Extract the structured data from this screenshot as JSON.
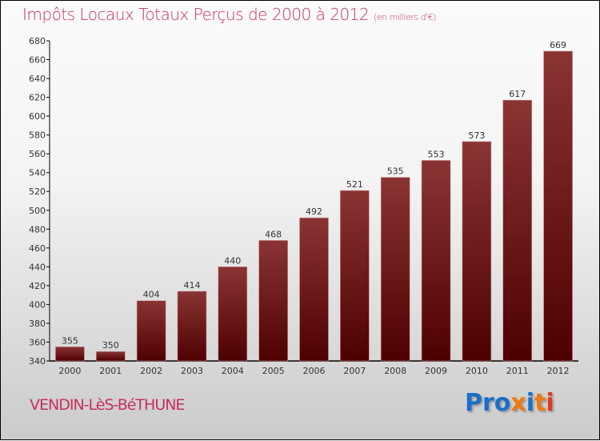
{
  "chart_data": {
    "type": "bar",
    "title": "Impôts Locaux Totaux Perçus de 2000 à 2012",
    "subtitle": "(en milliers d'€)",
    "categories": [
      "2000",
      "2001",
      "2002",
      "2003",
      "2004",
      "2005",
      "2006",
      "2007",
      "2008",
      "2009",
      "2010",
      "2011",
      "2012"
    ],
    "values": [
      355,
      350,
      404,
      414,
      440,
      468,
      492,
      521,
      535,
      553,
      573,
      617,
      669
    ],
    "ylim": [
      340,
      680
    ],
    "ytick_step": 20,
    "xlabel": "",
    "ylabel": "",
    "grid": false,
    "bar_color": "#6e1a1a"
  },
  "footer": {
    "commune": "VENDIN-LèS-BéTHUNE",
    "logo": "Proxiti"
  },
  "colors": {
    "title": "#c8305e",
    "logo_letters": [
      "#1a6fc8",
      "#1a6fc8",
      "#1a6fc8",
      "#f07a10",
      "#1a6fc8",
      "#f07a10",
      "#e03a20",
      "#3a9a30"
    ]
  }
}
